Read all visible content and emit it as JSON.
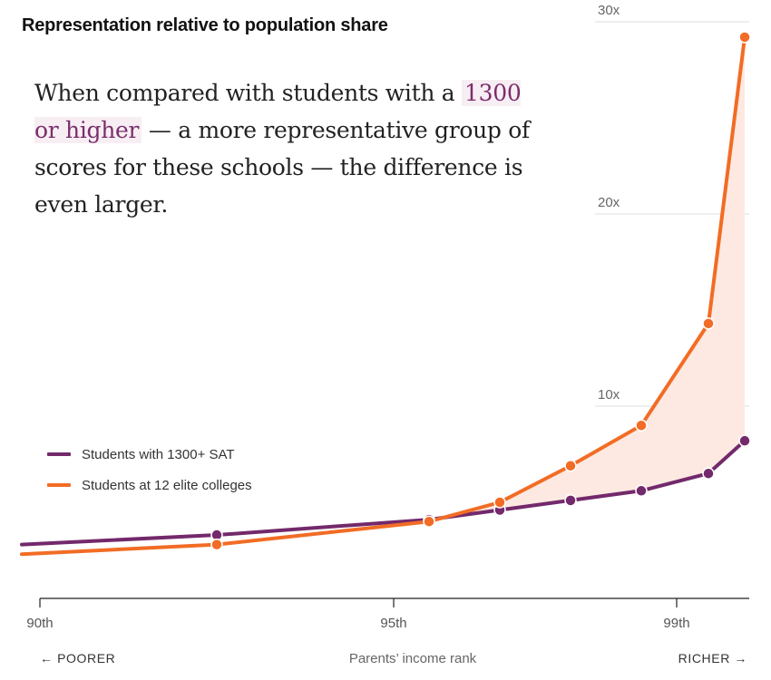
{
  "chart_data": {
    "type": "line",
    "title": "Representation relative to population share",
    "annotation": {
      "before": "When compared with students with a",
      "highlight": "1300 or higher",
      "after": "— a more representative group of scores for these schools — the difference is even larger."
    },
    "xlabel": "Parents’ income rank",
    "x_left_label": "← POORER",
    "x_right_label": "RICHER →",
    "x_ticks": [
      {
        "value": 90,
        "label": "90th"
      },
      {
        "value": 95,
        "label": "95th"
      },
      {
        "value": 99,
        "label": "99th"
      }
    ],
    "y_ticks": [
      {
        "value": 10,
        "label": "10x"
      },
      {
        "value": 20,
        "label": "20x"
      },
      {
        "value": 30,
        "label": "30x"
      }
    ],
    "xlim": [
      89.8,
      100
    ],
    "ylim": [
      0,
      30
    ],
    "series": [
      {
        "name": "Students with 1300+ SAT",
        "color": "#73296b",
        "x": [
          89.8,
          92.5,
          95.5,
          96.5,
          97.5,
          98.5,
          99.45,
          99.9
        ],
        "y": [
          2.8,
          3.3,
          4.1,
          4.6,
          5.1,
          5.6,
          6.5,
          8.2
        ]
      },
      {
        "name": "Students at 12 elite colleges",
        "color": "#f26c25",
        "x": [
          89.8,
          92.5,
          95.5,
          96.5,
          97.5,
          98.5,
          99.45,
          99.9
        ],
        "y": [
          2.3,
          2.8,
          4.0,
          5.0,
          6.9,
          9.0,
          14.3,
          29.2
        ]
      }
    ],
    "shade_color": "#fde9e1",
    "grid": true,
    "legend_position": "left"
  }
}
